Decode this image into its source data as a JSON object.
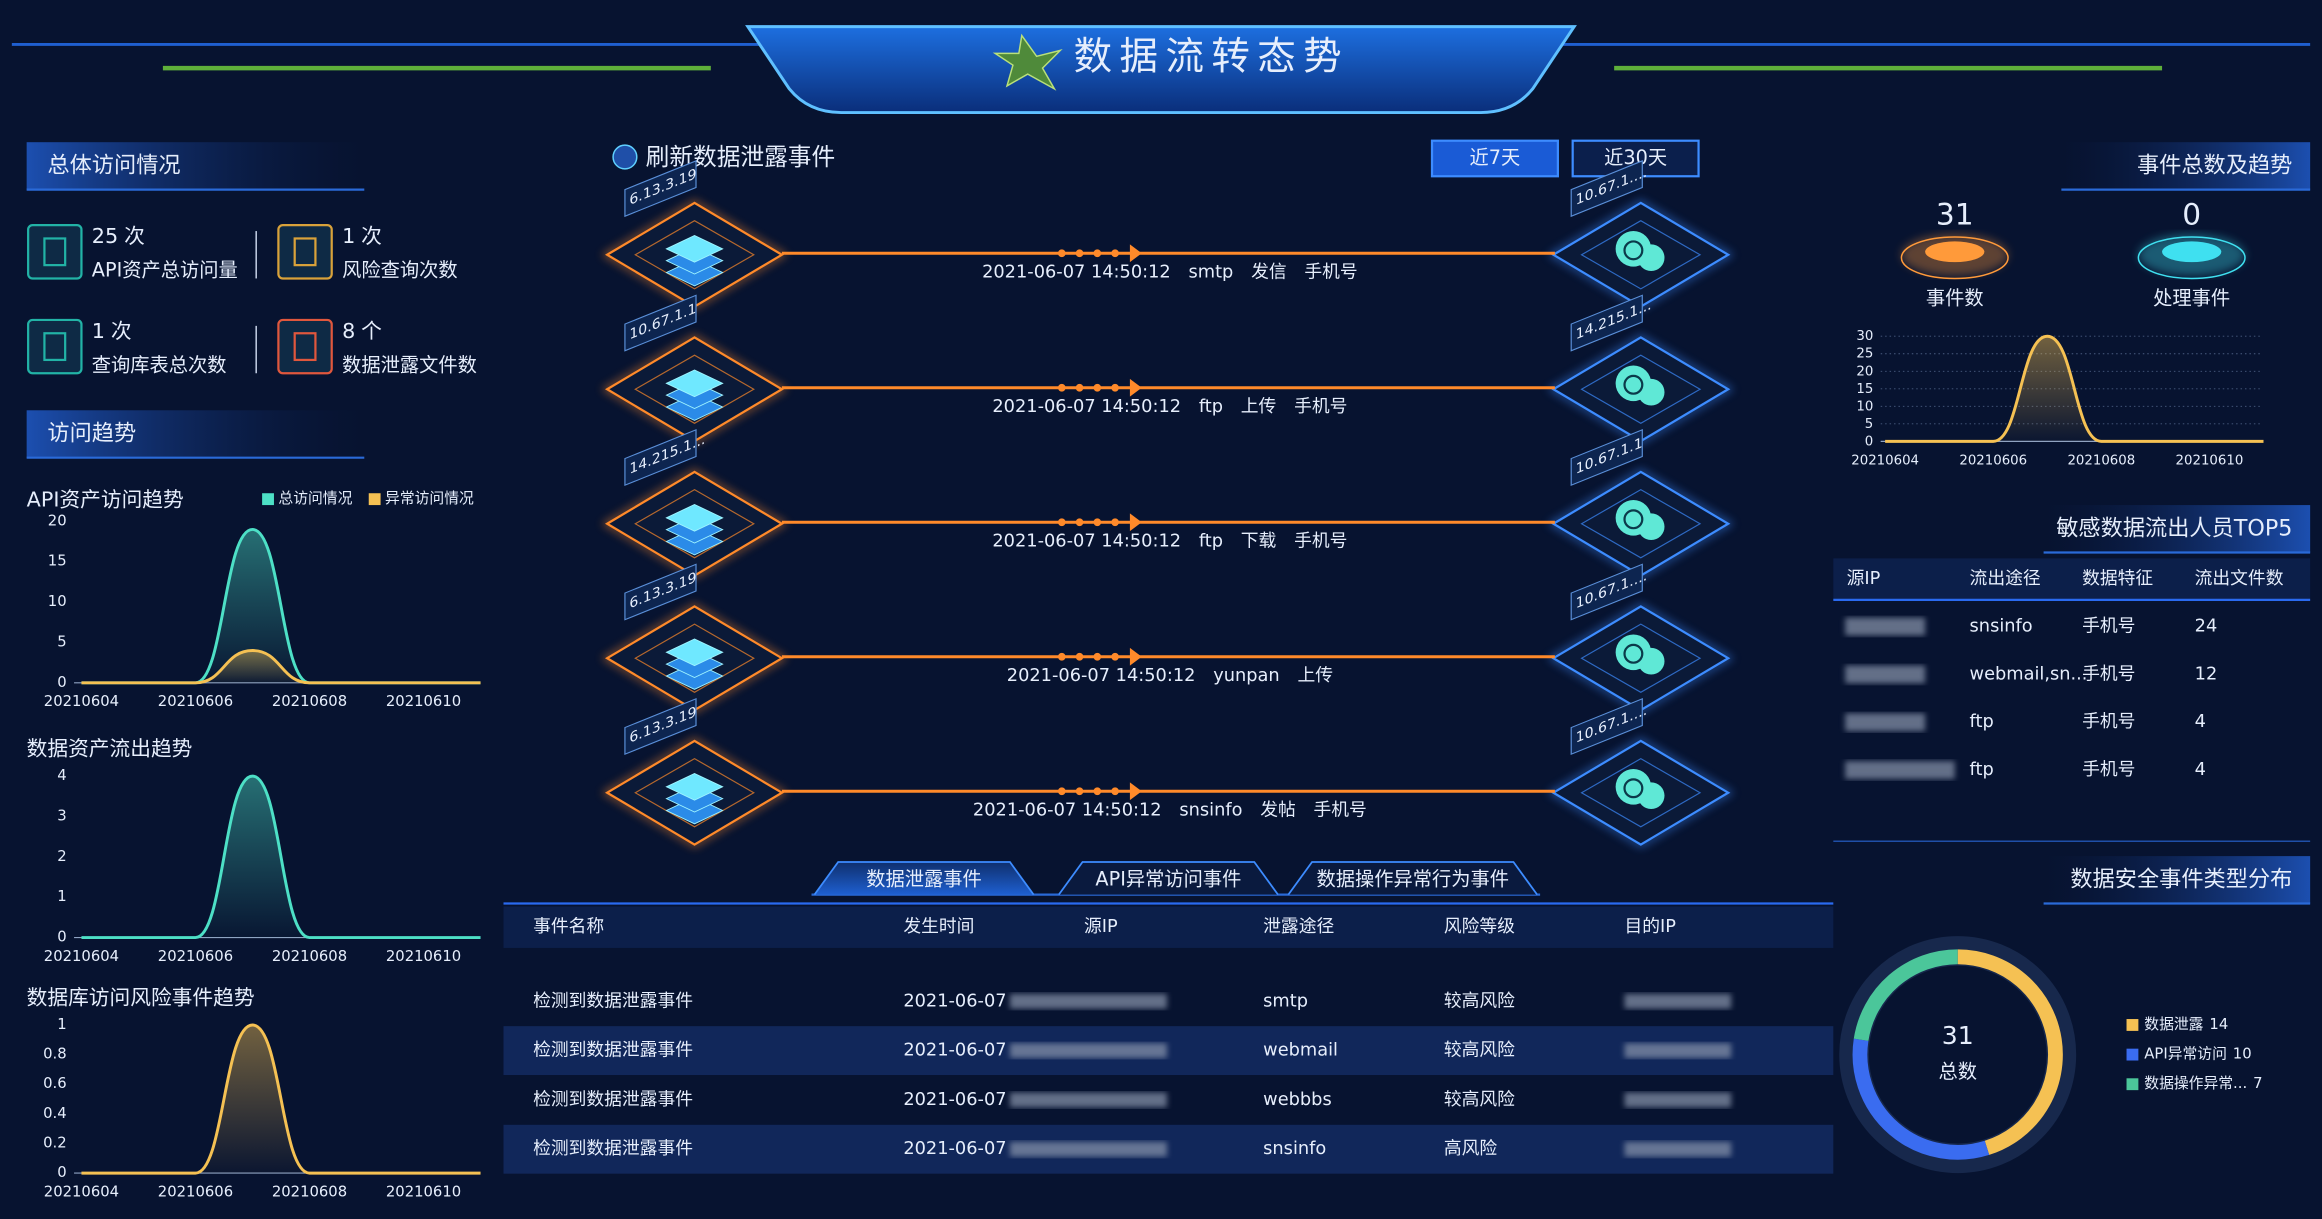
{
  "header": {
    "title": "数据流转态势"
  },
  "overview": {
    "title": "总体访问情况",
    "items": [
      {
        "value": 25,
        "unit": "次",
        "label": "API资产总访问量"
      },
      {
        "value": 1,
        "unit": "次",
        "label": "风险查询次数"
      },
      {
        "value": 1,
        "unit": "次",
        "label": "查询库表总次数"
      },
      {
        "value": 8,
        "unit": "个",
        "label": "数据泄露文件数"
      }
    ]
  },
  "trend": {
    "title": "访问趋势",
    "charts": [
      {
        "type": "line",
        "title": "API资产访问趋势",
        "categories": [
          "20210604",
          null,
          "20210606",
          null,
          "20210608",
          null,
          "20210610",
          null
        ],
        "series": [
          {
            "name": "总访问情况",
            "color": "#4de0c6",
            "values": [
              0,
              0,
              0,
              19,
              0,
              0,
              0,
              0
            ]
          },
          {
            "name": "异常访问情况",
            "color": "#f5c153",
            "values": [
              0,
              0,
              0,
              4,
              0,
              0,
              0,
              0
            ]
          }
        ],
        "ylim": [
          0,
          20
        ],
        "yticks": [
          0,
          5,
          10,
          15,
          20
        ],
        "grid": false,
        "legend": "top-right"
      },
      {
        "type": "line",
        "title": "数据资产流出趋势",
        "categories": [
          "20210604",
          null,
          "20210606",
          null,
          "20210608",
          null,
          "20210610",
          null
        ],
        "series": [
          {
            "color": "#4de0c6",
            "values": [
              0,
              0,
              0,
              4,
              0,
              0,
              0,
              0
            ]
          }
        ],
        "ylim": [
          0,
          4
        ],
        "yticks": [
          0,
          1,
          2,
          3,
          4
        ],
        "grid": false
      },
      {
        "type": "line",
        "title": "数据库访问风险事件趋势",
        "categories": [
          "20210604",
          null,
          "20210606",
          null,
          "20210608",
          null,
          "20210610",
          null
        ],
        "series": [
          {
            "color": "#f5c153",
            "values": [
              0,
              0,
              0,
              1,
              0,
              0,
              0,
              0
            ]
          }
        ],
        "ylim": [
          0,
          1
        ],
        "yticks": [
          0,
          0.2,
          0.4,
          0.6,
          0.8,
          1
        ],
        "grid": false
      }
    ]
  },
  "events": {
    "title": "刷新数据泄露事件",
    "ranges": [
      "近7天",
      "近30天"
    ],
    "flows": [
      {
        "source": "6.13.3.19",
        "target": "10.67.1....",
        "time": "2021-06-07 14:50:12",
        "channel": "smtp",
        "action": "发信",
        "feature": "手机号"
      },
      {
        "source": "10.67.1.1",
        "target": "14.215.1...",
        "time": "2021-06-07 14:50:12",
        "channel": "ftp",
        "action": "上传",
        "feature": "手机号"
      },
      {
        "source": "14.215.1...",
        "target": "10.67.1.1",
        "time": "2021-06-07 14:50:12",
        "channel": "ftp",
        "action": "下载",
        "feature": "手机号"
      },
      {
        "source": "6.13.3.19",
        "target": "10.67.1....",
        "time": "2021-06-07 14:50:12",
        "channel": "yunpan",
        "action": "上传"
      },
      {
        "source": "6.13.3.19",
        "target": "10.67.1....",
        "time": "2021-06-07 14:50:12",
        "channel": "snsinfo",
        "action": "发帖",
        "feature": "手机号"
      }
    ]
  },
  "tabs": [
    "数据泄露事件",
    "API异常访问事件",
    "数据操作异常行为事件"
  ],
  "table": {
    "columns": [
      "事件名称",
      "发生时间",
      "源IP",
      "泄露途径",
      "风险等级",
      "目的IP"
    ],
    "rows": [
      {
        "name": "检测到数据泄露事件",
        "time": "2021-06-07",
        "channel": "smtp",
        "risk": "较高风险"
      },
      {
        "name": "检测到数据泄露事件",
        "time": "2021-06-07",
        "channel": "webmail",
        "risk": "较高风险"
      },
      {
        "name": "检测到数据泄露事件",
        "time": "2021-06-07",
        "channel": "webbbs",
        "risk": "较高风险"
      },
      {
        "name": "检测到数据泄露事件",
        "time": "2021-06-07",
        "channel": "snsinfo",
        "risk": "高风险"
      }
    ]
  },
  "summary": {
    "title": "事件总数及趋势",
    "stats": [
      {
        "value": 31,
        "label": "事件数"
      },
      {
        "value": 0,
        "label": "处理事件"
      }
    ],
    "chart": {
      "type": "line",
      "categories": [
        "20210604",
        null,
        "20210606",
        null,
        "20210608",
        null,
        "20210610",
        null
      ],
      "series": [
        {
          "color": "#f5c153",
          "values": [
            0,
            0,
            0,
            30,
            0,
            0,
            0,
            0
          ]
        }
      ],
      "ylim": [
        0,
        30
      ],
      "yticks": [
        0,
        5,
        10,
        15,
        20,
        25,
        30
      ],
      "grid": true
    }
  },
  "top5": {
    "title": "敏感数据流出人员TOP5",
    "columns": [
      "源IP",
      "流出途径",
      "数据特征",
      "流出文件数"
    ],
    "rows": [
      {
        "channel": "snsinfo",
        "feature": "手机号",
        "files": 24
      },
      {
        "channel": "webmail,sn...",
        "feature": "手机号",
        "files": 12
      },
      {
        "channel": "ftp",
        "feature": "手机号",
        "files": 4
      },
      {
        "channel": "ftp",
        "feature": "手机号",
        "files": 4
      }
    ]
  },
  "distribution": {
    "title": "数据安全事件类型分布",
    "total": 31,
    "total_label": "总数",
    "chart": {
      "type": "pie",
      "categories": [
        "数据泄露",
        "API异常访问",
        "数据操作异常..."
      ],
      "values": [
        14,
        10,
        7
      ],
      "colors": [
        "#f5c153",
        "#3a6cf0",
        "#4bc69a"
      ]
    }
  }
}
